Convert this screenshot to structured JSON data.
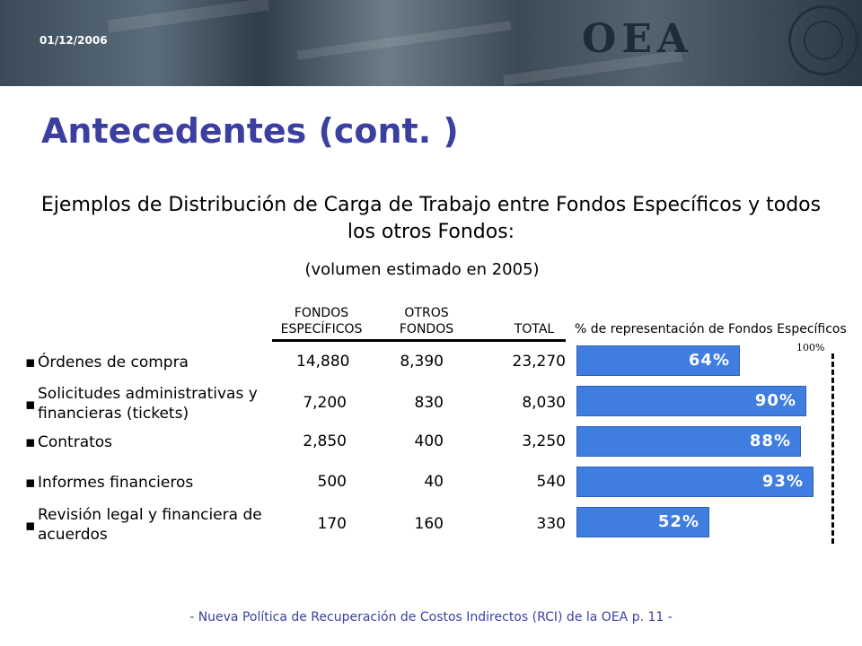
{
  "header": {
    "date": "01/12/2006",
    "org": "OEA"
  },
  "slide": {
    "title": "Antecedentes (cont. )",
    "subtitle": "Ejemplos de Distribución de Carga de Trabajo entre Fondos Específicos y todos los otros Fondos:",
    "volumen": "(volumen estimado en 2005)"
  },
  "table": {
    "col_especificos": [
      "FONDOS",
      "ESPECÍFICOS"
    ],
    "col_otros": [
      "OTROS",
      "FONDOS"
    ],
    "col_total": "TOTAL",
    "col_pct": "% de representación de Fondos Específicos",
    "hundred_label": "100%",
    "bullet": "▪",
    "rows": [
      {
        "label": "Órdenes de compra",
        "especificos": "14,880",
        "otros": "8,390",
        "total": "23,270",
        "pct_label": "64%",
        "pct": 64
      },
      {
        "label": "Solicitudes administrativas y financieras (tickets)",
        "especificos": "7,200",
        "otros": "830",
        "total": "8,030",
        "pct_label": "90%",
        "pct": 90
      },
      {
        "label": "Contratos",
        "especificos": "2,850",
        "otros": "400",
        "total": "3,250",
        "pct_label": "88%",
        "pct": 88
      },
      {
        "label": "Informes financieros",
        "especificos": "500",
        "otros": "40",
        "total": "540",
        "pct_label": "93%",
        "pct": 93
      },
      {
        "label": "Revisión legal y financiera de acuerdos",
        "especificos": "170",
        "otros": "160",
        "total": "330",
        "pct_label": "52%",
        "pct": 52
      }
    ]
  },
  "footer": "-  Nueva Política de Recuperación de Costos Indirectos (RCI) de la OEA p. 11 -",
  "colors": {
    "title": "#3b3fa0",
    "bar": "#3f7de0",
    "footer": "#3b3fa0"
  }
}
